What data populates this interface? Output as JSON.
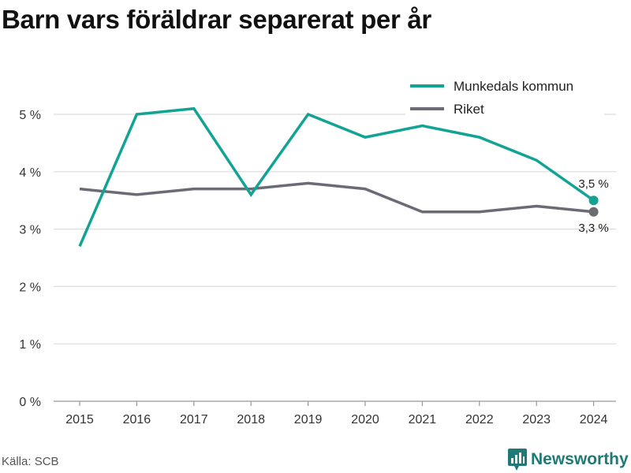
{
  "title": "Barn vars föräldrar separerat per år",
  "source": "Källa: SCB",
  "brand": "Newsworthy",
  "colors": {
    "munkedal": "#12a394",
    "riket": "#6a6b75",
    "grid": "#dcdcdc",
    "axis": "#999999",
    "brand": "#1f7a77"
  },
  "chart_data": {
    "type": "line",
    "title": "Barn vars föräldrar separerat per år",
    "xlabel": "",
    "ylabel": "",
    "x": [
      "2015",
      "2016",
      "2017",
      "2018",
      "2019",
      "2020",
      "2021",
      "2022",
      "2023",
      "2024"
    ],
    "ylim": [
      0,
      5.2
    ],
    "y_ticks": [
      0,
      1,
      2,
      3,
      4,
      5
    ],
    "y_tick_labels": [
      "0 %",
      "1 %",
      "2 %",
      "3 %",
      "4 %",
      "5 %"
    ],
    "grid": true,
    "legend_position": "top-right",
    "series": [
      {
        "name": "Munkedals kommun",
        "color": "#12a394",
        "values": [
          2.7,
          5.0,
          5.1,
          3.6,
          5.0,
          4.6,
          4.8,
          4.6,
          4.2,
          3.5
        ],
        "end_label": "3,5 %"
      },
      {
        "name": "Riket",
        "color": "#6a6b75",
        "values": [
          3.7,
          3.6,
          3.7,
          3.7,
          3.8,
          3.7,
          3.3,
          3.3,
          3.4,
          3.3
        ],
        "end_label": "3,3 %"
      }
    ]
  }
}
